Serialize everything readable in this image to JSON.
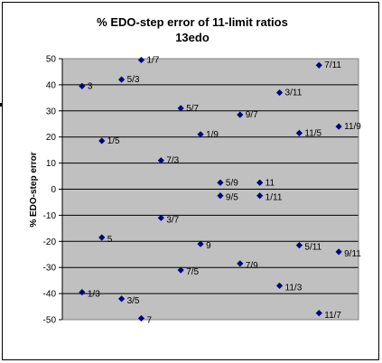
{
  "chart_data": {
    "type": "scatter",
    "title": "% EDO-step error of 11-limit ratios",
    "subtitle": "13edo",
    "ylabel": "% EDO-step error",
    "xlabel": "",
    "ylim": [
      -50,
      50
    ],
    "y_ticks": [
      "50",
      "40",
      "30",
      "20",
      "10",
      "0",
      "-10",
      "-20",
      "-30",
      "-40",
      "-50"
    ],
    "grid": true,
    "x_axis_visible": false,
    "plot_background": "#c0c0c0",
    "marker_color": "#000080",
    "points": [
      {
        "label": "3",
        "x": 1,
        "y": 39.5
      },
      {
        "label": "1/3",
        "x": 1,
        "y": -39.5
      },
      {
        "label": "1/5",
        "x": 2,
        "y": 18.5
      },
      {
        "label": "5",
        "x": 2,
        "y": -18.5
      },
      {
        "label": "5/3",
        "x": 3,
        "y": 42
      },
      {
        "label": "3/5",
        "x": 3,
        "y": -42
      },
      {
        "label": "1/7",
        "x": 4,
        "y": 49.5
      },
      {
        "label": "7",
        "x": 4,
        "y": -49.5
      },
      {
        "label": "7/3",
        "x": 5,
        "y": 11
      },
      {
        "label": "3/7",
        "x": 5,
        "y": -11
      },
      {
        "label": "5/7",
        "x": 6,
        "y": 31
      },
      {
        "label": "7/5",
        "x": 6,
        "y": -31
      },
      {
        "label": "1/9",
        "x": 7,
        "y": 21
      },
      {
        "label": "9",
        "x": 7,
        "y": -21
      },
      {
        "label": "5/9",
        "x": 8,
        "y": 2.5
      },
      {
        "label": "9/5",
        "x": 8,
        "y": -2.5
      },
      {
        "label": "9/7",
        "x": 9,
        "y": 28.5
      },
      {
        "label": "7/9",
        "x": 9,
        "y": -28.5
      },
      {
        "label": "11",
        "x": 10,
        "y": 2.5
      },
      {
        "label": "1/11",
        "x": 10,
        "y": -2.5
      },
      {
        "label": "3/11",
        "x": 11,
        "y": 37
      },
      {
        "label": "11/3",
        "x": 11,
        "y": -37
      },
      {
        "label": "11/5",
        "x": 12,
        "y": 21.5
      },
      {
        "label": "5/11",
        "x": 12,
        "y": -21.5
      },
      {
        "label": "7/11",
        "x": 13,
        "y": 47.5
      },
      {
        "label": "11/7",
        "x": 13,
        "y": -47.5
      },
      {
        "label": "11/9",
        "x": 14,
        "y": 24
      },
      {
        "label": "9/11",
        "x": 14,
        "y": -24
      }
    ]
  }
}
